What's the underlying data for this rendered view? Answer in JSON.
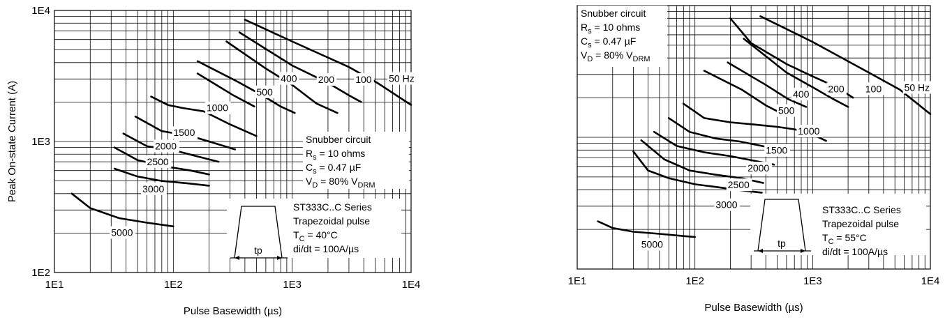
{
  "chart_data": [
    {
      "type": "line",
      "scale": "log-log",
      "xlim": [
        10,
        10000
      ],
      "ylim": [
        100,
        10000
      ],
      "xlabel": "Pulse Basewidth (µs)",
      "ylabel": "Peak On-state Current (A)",
      "x_ticks": [
        "1E1",
        "1E2",
        "1E3",
        "1E4"
      ],
      "y_ticks": [
        "1E2",
        "1E3",
        "1E4"
      ],
      "grid": true,
      "annotation_snubber": [
        "Snubber circuit",
        "R",
        "s",
        " = 10 ohms",
        "C",
        "s",
        " = 0.47 µF",
        "V",
        "D",
        " = 80% V",
        "DRM"
      ],
      "annotation_series": [
        "ST333C..C Series",
        "Trapezoidal pulse",
        "T",
        "C",
        " = 40°C",
        "di/dt = 100A/µs"
      ],
      "inset_label": "tp",
      "series": [
        {
          "name": "50 Hz",
          "x": [
            400,
            1000,
            3000,
            5200,
            10000
          ],
          "y": [
            8500,
            5800,
            3700,
            2800,
            1900
          ]
        },
        {
          "name": "100",
          "x": [
            360,
            1000,
            2000,
            3000,
            3800
          ],
          "y": [
            6800,
            3800,
            2800,
            2250,
            2000
          ]
        },
        {
          "name": "200",
          "x": [
            280,
            600,
            1000,
            1600,
            2400
          ],
          "y": [
            5800,
            3600,
            2700,
            1950,
            1650
          ]
        },
        {
          "name": "400",
          "x": [
            160,
            350,
            560,
            800,
            1050
          ],
          "y": [
            4100,
            2850,
            2250,
            1850,
            1650
          ]
        },
        {
          "name": "500",
          "x": [
            160,
            320,
            480
          ],
          "y": [
            3300,
            2250,
            1850
          ]
        },
        {
          "name": "1000",
          "x": [
            65,
            90,
            120,
            180,
            300,
            500
          ],
          "y": [
            2200,
            1900,
            1800,
            1700,
            1350,
            1100
          ]
        },
        {
          "name": "1500",
          "x": [
            48,
            80,
            140,
            200,
            330
          ],
          "y": [
            1550,
            1200,
            1100,
            1000,
            870
          ]
        },
        {
          "name": "2000",
          "x": [
            38,
            60,
            100,
            150,
            240
          ],
          "y": [
            1150,
            920,
            860,
            780,
            700
          ]
        },
        {
          "name": "2500",
          "x": [
            32,
            50,
            90,
            140,
            200
          ],
          "y": [
            900,
            720,
            640,
            600,
            560
          ]
        },
        {
          "name": "3000",
          "x": [
            32,
            50,
            80,
            130,
            200
          ],
          "y": [
            620,
            540,
            500,
            480,
            460
          ]
        },
        {
          "name": "5000",
          "x": [
            14,
            20,
            35,
            60,
            100
          ],
          "y": [
            400,
            310,
            260,
            240,
            225
          ]
        }
      ],
      "curve_labels": [
        {
          "text": "50 Hz",
          "x": 6500,
          "y": 2850
        },
        {
          "text": "100",
          "x": 3400,
          "y": 2800
        },
        {
          "text": "200",
          "x": 1650,
          "y": 2800
        },
        {
          "text": "400",
          "x": 800,
          "y": 2850
        },
        {
          "text": "500",
          "x": 500,
          "y": 2250
        },
        {
          "text": "1000",
          "x": 190,
          "y": 1700
        },
        {
          "text": "1500",
          "x": 100,
          "y": 1100
        },
        {
          "text": "2000",
          "x": 70,
          "y": 870
        },
        {
          "text": "2500",
          "x": 60,
          "y": 660
        },
        {
          "text": "3000",
          "x": 55,
          "y": 410
        },
        {
          "text": "5000",
          "x": 30,
          "y": 190
        }
      ]
    },
    {
      "type": "line",
      "scale": "log-log",
      "xlim": [
        10,
        10000
      ],
      "ylim": [
        100,
        10000
      ],
      "xlabel": "Pulse Basewidth (µs)",
      "ylabel": "",
      "x_ticks": [
        "1E1",
        "1E2",
        "1E3",
        "1E4"
      ],
      "y_ticks": [],
      "grid": true,
      "annotation_snubber": [
        "Snubber circuit",
        "R",
        "s",
        " = 10 ohms",
        "C",
        "s",
        " = 0.47 µF",
        "V",
        "D",
        " = 80% V",
        "DRM"
      ],
      "annotation_series": [
        "ST333C..C Series",
        "Trapezoidal pulse",
        "T",
        "C",
        " = 55°C",
        "di/dt = 100A/µs"
      ],
      "inset_label": "tp",
      "series": [
        {
          "name": "50 Hz",
          "x": [
            360,
            1000,
            3000,
            5500,
            10000
          ],
          "y": [
            8300,
            5300,
            3100,
            2300,
            1500
          ]
        },
        {
          "name": "100",
          "x": [
            200,
            300,
            600,
            1000,
            1600,
            2200
          ],
          "y": [
            8000,
            5200,
            3600,
            2900,
            2400,
            2000
          ]
        },
        {
          "name": "200",
          "x": [
            260,
            600,
            1000,
            1500,
            2000
          ],
          "y": [
            5600,
            3100,
            2400,
            1950,
            1700
          ]
        },
        {
          "name": "400",
          "x": [
            190,
            400,
            620,
            880
          ],
          "y": [
            3700,
            2500,
            1950,
            1700
          ]
        },
        {
          "name": "500",
          "x": [
            120,
            250,
            400,
            520
          ],
          "y": [
            3200,
            2300,
            1750,
            1550
          ]
        },
        {
          "name": "1000",
          "x": [
            80,
            120,
            200,
            320,
            500,
            700,
            1000,
            1300
          ],
          "y": [
            1800,
            1400,
            1300,
            1250,
            1200,
            1150,
            1050,
            940
          ]
        },
        {
          "name": "1500",
          "x": [
            60,
            90,
            150,
            240,
            370,
            550
          ],
          "y": [
            1400,
            1100,
            980,
            930,
            860,
            800
          ]
        },
        {
          "name": "2000",
          "x": [
            45,
            70,
            120,
            200,
            330,
            470
          ],
          "y": [
            1100,
            860,
            770,
            720,
            660,
            620
          ]
        },
        {
          "name": "2500",
          "x": [
            35,
            55,
            90,
            150,
            250,
            380
          ],
          "y": [
            950,
            680,
            560,
            520,
            490,
            450
          ]
        },
        {
          "name": "3000",
          "x": [
            30,
            40,
            60,
            100,
            150,
            250,
            370
          ],
          "y": [
            780,
            560,
            490,
            440,
            420,
            395,
            380
          ]
        },
        {
          "name": "5000",
          "x": [
            15,
            20,
            30,
            50,
            80,
            100
          ],
          "y": [
            230,
            205,
            192,
            185,
            178,
            175
          ]
        }
      ],
      "curve_labels": [
        {
          "text": "50 Hz",
          "x": 6000,
          "y": 2250
        },
        {
          "text": "100",
          "x": 2800,
          "y": 2200
        },
        {
          "text": "200",
          "x": 1350,
          "y": 2200
        },
        {
          "text": "400",
          "x": 680,
          "y": 2000
        },
        {
          "text": "500",
          "x": 510,
          "y": 1500
        },
        {
          "text": "1000",
          "x": 750,
          "y": 1050
        },
        {
          "text": "1500",
          "x": 400,
          "y": 750
        },
        {
          "text": "2000",
          "x": 280,
          "y": 550
        },
        {
          "text": "2500",
          "x": 190,
          "y": 410
        },
        {
          "text": "3000",
          "x": 150,
          "y": 290
        },
        {
          "text": "5000",
          "x": 35,
          "y": 145
        }
      ]
    }
  ]
}
